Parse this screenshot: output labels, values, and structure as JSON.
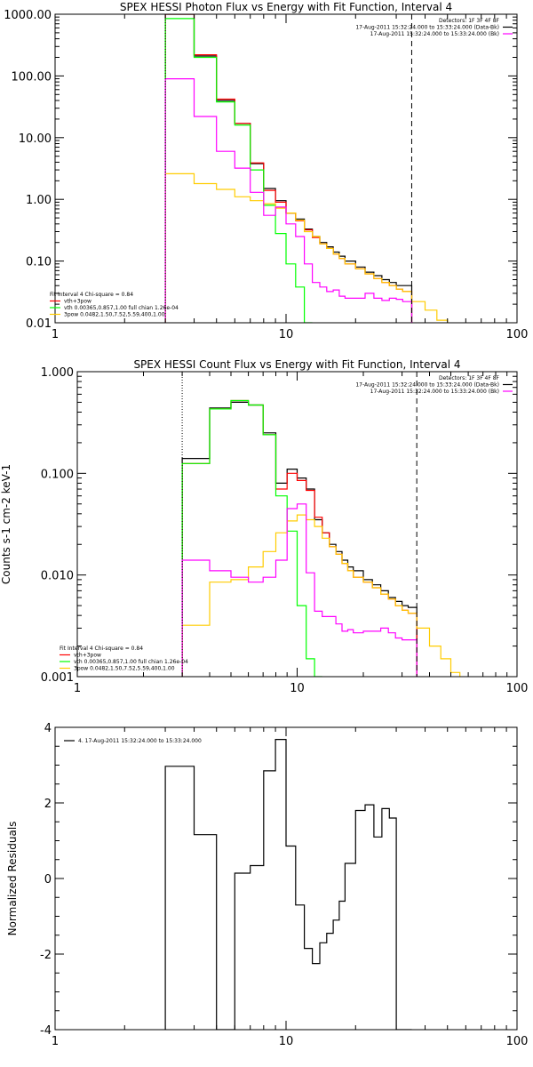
{
  "chart_data": [
    {
      "type": "line",
      "title": "SPEX HESSI Photon Flux vs Energy with Fit Function, Interval 4",
      "xscale": "log",
      "yscale": "log",
      "xlim": [
        1,
        100
      ],
      "ylim": [
        0.01,
        1000
      ],
      "xticks": [
        {
          "v": 1,
          "label": "1"
        },
        {
          "v": 10,
          "label": "10"
        },
        {
          "v": 100,
          "label": "100"
        }
      ],
      "yticks": [
        {
          "v": 0.01,
          "label": "0.01"
        },
        {
          "v": 0.1,
          "label": "0.10"
        },
        {
          "v": 1,
          "label": "1.00"
        },
        {
          "v": 10,
          "label": "10.00"
        },
        {
          "v": 100,
          "label": "100.00"
        },
        {
          "v": 1000,
          "label": "1000.00"
        }
      ],
      "vlines": [
        {
          "x": 3,
          "style": "dotted",
          "color": "#000000"
        },
        {
          "x": 35,
          "style": "dashed",
          "color": "#000000"
        }
      ],
      "legend_top": {
        "position": "top-right",
        "lines": [
          "Detectors: 1F 3F 4F 8F",
          "17-Aug-2011 15:32:24.000 to 15:33:24.000 (Data-Bk)",
          "17-Aug-2011 15:32:24.000 to 15:33:24.000 (Bk)"
        ],
        "colors": [
          "",
          "#000000",
          "#ff00ff"
        ]
      },
      "legend_bottom": {
        "position": "bottom-left",
        "lines": [
          "Fit Interval  4    Chi-square = 0.84",
          "vth+3pow",
          "vth 0.00365,0.857,1.00  full chian 1.26e-04",
          "3pow 0.0482,1.50,7.52,5.59,400,1.00"
        ],
        "colors": [
          "",
          "#ff0000",
          "#00ff00",
          "#ffcc00"
        ]
      },
      "step_edges": [
        3,
        4,
        5,
        6,
        7,
        8,
        9,
        10,
        11,
        12,
        13,
        14,
        15,
        16,
        17,
        18,
        20,
        22,
        24,
        26,
        28,
        30,
        32,
        35,
        40,
        45,
        50
      ],
      "series": [
        {
          "name": "Data-Bk",
          "color": "#000000",
          "values": [
            1000,
            210,
            40,
            17,
            3.8,
            1.5,
            0.95,
            0.6,
            0.48,
            0.33,
            0.25,
            0.2,
            0.17,
            0.14,
            0.12,
            0.1,
            0.08,
            0.066,
            0.058,
            0.05,
            0.045,
            0.04,
            0.04,
            null,
            null,
            null
          ]
        },
        {
          "name": "vth+3pow",
          "color": "#ff0000",
          "values": [
            1000,
            220,
            42,
            17,
            3.9,
            1.4,
            0.9,
            0.6,
            0.45,
            0.32,
            0.24,
            0.19,
            0.16,
            0.13,
            0.11,
            0.09,
            0.075,
            0.062,
            0.052,
            0.045,
            0.04,
            0.035,
            0.032,
            null,
            null,
            null
          ]
        },
        {
          "name": "vth",
          "color": "#00ff00",
          "values": [
            850,
            200,
            38,
            16,
            3,
            0.8,
            0.28,
            0.09,
            0.038,
            0.01,
            null,
            null,
            null,
            null,
            null,
            null,
            null,
            null,
            null,
            null,
            null,
            null,
            null,
            null,
            null,
            null
          ]
        },
        {
          "name": "3pow",
          "color": "#ffcc00",
          "values": [
            2.6,
            1.8,
            1.45,
            1.1,
            0.95,
            0.85,
            0.72,
            0.6,
            0.46,
            0.3,
            0.25,
            0.19,
            0.16,
            0.13,
            0.11,
            0.09,
            0.075,
            0.062,
            0.052,
            0.045,
            0.04,
            0.035,
            0.032,
            0.022,
            0.016,
            0.011
          ]
        },
        {
          "name": "Bk",
          "color": "#ff00ff",
          "values": [
            90,
            22,
            6,
            3.2,
            1.3,
            0.55,
            0.75,
            0.4,
            0.25,
            0.09,
            0.045,
            0.038,
            0.032,
            0.034,
            0.027,
            0.025,
            0.025,
            0.03,
            0.025,
            0.023,
            0.025,
            0.024,
            0.022,
            0.005,
            null,
            null
          ]
        }
      ]
    },
    {
      "type": "line",
      "title": "SPEX HESSI Count Flux vs Energy with Fit Function, Interval 4",
      "ylabel": "Counts s-1 cm-2 keV-1",
      "xscale": "log",
      "yscale": "log",
      "xlim": [
        1,
        100
      ],
      "ylim": [
        0.001,
        1
      ],
      "xticks": [
        {
          "v": 1,
          "label": "1"
        },
        {
          "v": 10,
          "label": "10"
        },
        {
          "v": 100,
          "label": "100"
        }
      ],
      "yticks": [
        {
          "v": 0.001,
          "label": "0.001"
        },
        {
          "v": 0.01,
          "label": "0.010"
        },
        {
          "v": 0.1,
          "label": "0.100"
        },
        {
          "v": 1,
          "label": "1.000"
        }
      ],
      "vlines": [
        {
          "x": 3,
          "style": "dotted",
          "color": "#000000"
        },
        {
          "x": 35,
          "style": "dashed",
          "color": "#000000"
        }
      ],
      "legend_top": {
        "position": "top-right",
        "lines": [
          "Detectors: 1F 3F 4F 8F",
          "17-Aug-2011 15:32:24.000 to 15:33:24.000 (Data-Bk)",
          "17-Aug-2011 15:32:24.000 to 15:33:24.000 (Bk)"
        ],
        "colors": [
          "",
          "#000000",
          "#ff00ff"
        ]
      },
      "legend_bottom": {
        "position": "bottom-left",
        "lines": [
          "Fit Interval  4    Chi-square = 0.84",
          "vth+3pow",
          "vth 0.00365,0.857,1.00  full chian 1.26e-04",
          "3pow 0.0482,1.50,7.52,5.59,400,1.00"
        ],
        "colors": [
          "",
          "#ff0000",
          "#00ff00",
          "#ffcc00"
        ]
      },
      "step_edges": [
        3,
        4,
        5,
        6,
        7,
        8,
        9,
        10,
        11,
        12,
        13,
        14,
        15,
        16,
        17,
        18,
        20,
        22,
        24,
        26,
        28,
        30,
        32,
        35,
        40,
        45,
        50,
        55,
        60
      ],
      "series": [
        {
          "name": "Data-Bk",
          "color": "#000000",
          "values": [
            0.14,
            0.44,
            0.5,
            0.47,
            0.25,
            0.08,
            0.11,
            0.09,
            0.07,
            0.035,
            0.026,
            0.02,
            0.017,
            0.014,
            0.012,
            0.011,
            0.009,
            0.008,
            0.007,
            0.006,
            0.0055,
            0.005,
            0.0048,
            null,
            null,
            null,
            null,
            null
          ]
        },
        {
          "name": "vth+3pow",
          "color": "#ff0000",
          "values": [
            0.125,
            0.43,
            0.52,
            0.47,
            0.24,
            0.07,
            0.1,
            0.085,
            0.068,
            0.037,
            0.026,
            0.019,
            0.016,
            0.013,
            0.011,
            0.0095,
            0.0085,
            0.0075,
            0.0065,
            0.0058,
            0.005,
            0.0045,
            0.0042,
            null,
            null,
            null,
            null,
            null
          ]
        },
        {
          "name": "vth",
          "color": "#00ff00",
          "values": [
            0.125,
            0.43,
            0.52,
            0.47,
            0.24,
            0.06,
            0.027,
            0.005,
            0.0015,
            0.001,
            null,
            null,
            null,
            null,
            null,
            null,
            null,
            null,
            null,
            null,
            null,
            null,
            null,
            null,
            null,
            null,
            null,
            null
          ]
        },
        {
          "name": "3pow",
          "color": "#ffcc00",
          "values": [
            0.0032,
            0.0085,
            0.009,
            0.012,
            0.017,
            0.026,
            0.034,
            0.039,
            0.035,
            0.03,
            0.023,
            0.019,
            0.016,
            0.013,
            0.011,
            0.0095,
            0.0085,
            0.0075,
            0.0065,
            0.0058,
            0.005,
            0.0045,
            0.0042,
            0.003,
            0.002,
            0.0015,
            0.0011,
            0.0009
          ]
        },
        {
          "name": "Bk",
          "color": "#ff00ff",
          "values": [
            0.014,
            0.011,
            0.0095,
            0.0085,
            0.0095,
            0.014,
            0.045,
            0.05,
            0.0105,
            0.0044,
            0.0039,
            0.0039,
            0.0033,
            0.0028,
            0.0029,
            0.0027,
            0.0028,
            0.0028,
            0.003,
            0.0027,
            0.0024,
            0.0023,
            0.0023,
            0.0009,
            null,
            null,
            null,
            null
          ]
        }
      ]
    },
    {
      "type": "line",
      "title": "",
      "ylabel": "Normalized Residuals",
      "xscale": "log",
      "yscale": "linear",
      "xlim": [
        1,
        100
      ],
      "ylim": [
        -4,
        4
      ],
      "xticks": [
        {
          "v": 1,
          "label": "1"
        },
        {
          "v": 10,
          "label": "10"
        },
        {
          "v": 100,
          "label": "100"
        }
      ],
      "yticks": [
        {
          "v": -4,
          "label": "-4"
        },
        {
          "v": -2,
          "label": "-2"
        },
        {
          "v": 0,
          "label": "0"
        },
        {
          "v": 2,
          "label": "2"
        },
        {
          "v": 4,
          "label": "4"
        }
      ],
      "legend_top": {
        "position": "top-left",
        "lines": [
          "4. 17-Aug-2011 15:32:24.000 to 15:33:24.000"
        ],
        "colors": [
          "#000000"
        ]
      },
      "step_edges": [
        3,
        4,
        5,
        6,
        7,
        8,
        9,
        10,
        11,
        12,
        13,
        14,
        15,
        16,
        17,
        18,
        20,
        22,
        24,
        26,
        28,
        30,
        32,
        35
      ],
      "series": [
        {
          "name": "4. 17-Aug-2011 15:32:24.000 to 15:33:24.000",
          "color": "#000000",
          "values": [
            2.97,
            1.16,
            -4.0,
            0.14,
            0.34,
            2.85,
            3.68,
            0.86,
            -0.7,
            -1.85,
            -2.25,
            -1.7,
            -1.45,
            -1.1,
            -0.6,
            0.4,
            1.8,
            1.95,
            1.1,
            1.85,
            1.6,
            -4.0,
            -4.0
          ]
        }
      ]
    }
  ]
}
